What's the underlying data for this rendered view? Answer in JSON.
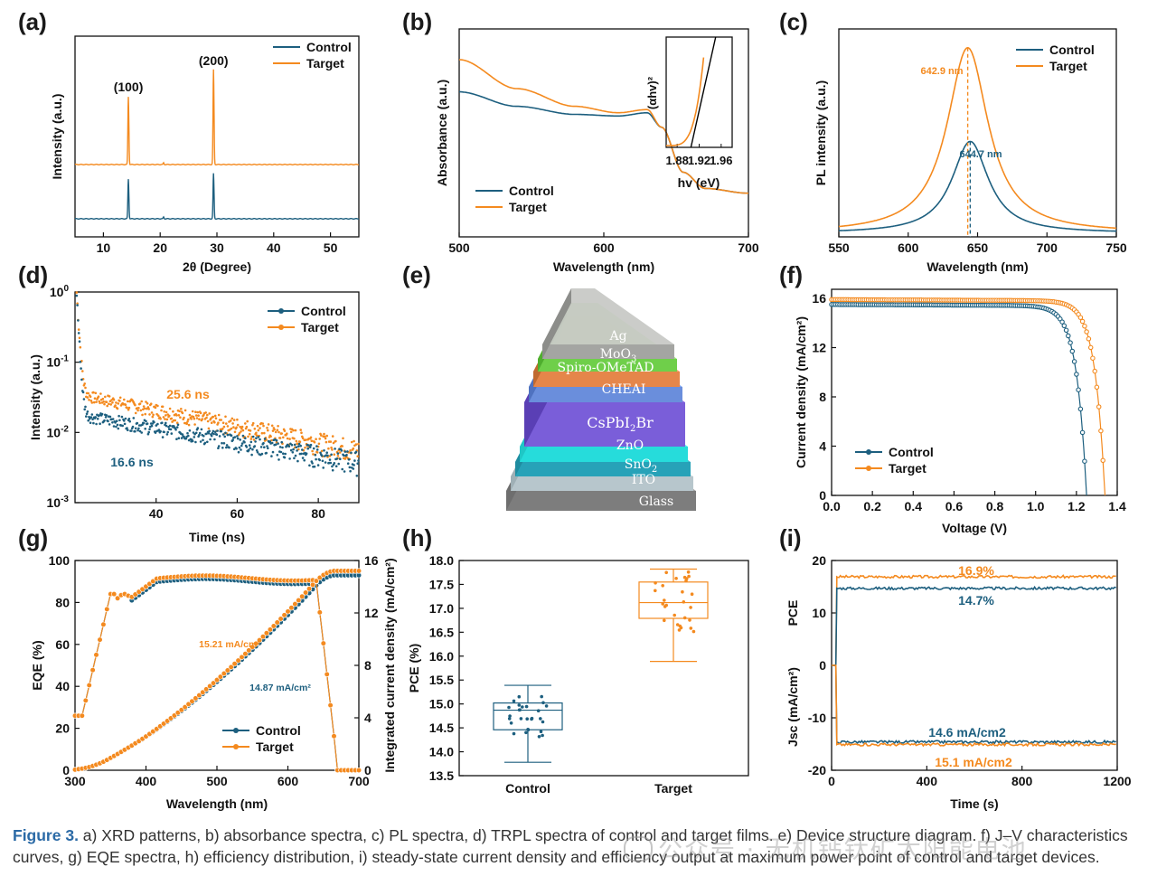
{
  "colors": {
    "control": "#1d5f7f",
    "target": "#f48a1f",
    "axis": "#111111"
  },
  "panel_labels": [
    "(a)",
    "(b)",
    "(c)",
    "(d)",
    "(e)",
    "(f)",
    "(g)",
    "(h)",
    "(i)"
  ],
  "legend": {
    "control": "Control",
    "target": "Target"
  },
  "caption": {
    "figure_label": "Figure 3.",
    "text": " a) XRD patterns, b) absorbance spectra, c) PL spectra, d) TRPL spectra of control and target films. e) Device structure diagram. f) J–V characteristics curves, g) EQE spectra, h) efficiency distribution, i) steady-state current density and efficiency output at maximum power point of control and target devices."
  },
  "watermark": {
    "text": "公众号 · 无机钙钛矿太阳能电池"
  },
  "chart_data": [
    {
      "id": "a",
      "type": "line",
      "xlabel": "2θ (Degree)",
      "ylabel": "Intensity (a.u.)",
      "xlim": [
        5,
        55
      ],
      "xticks": [
        10,
        20,
        30,
        40,
        50
      ],
      "peaks": [
        {
          "x": 14.4,
          "label": "(100)"
        },
        {
          "x": 29.4,
          "label": "(200)"
        }
      ],
      "series": [
        {
          "name": "Control",
          "baseline": "low"
        },
        {
          "name": "Target",
          "baseline": "high"
        }
      ]
    },
    {
      "id": "b",
      "type": "line",
      "xlabel": "Wavelength (nm)",
      "ylabel": "Absorbance (a.u.)",
      "xlim": [
        500,
        700
      ],
      "xticks": [
        500,
        600,
        700
      ],
      "series": [
        {
          "name": "Control",
          "x": [
            500,
            540,
            580,
            610,
            630,
            640,
            655,
            670,
            700
          ],
          "y": [
            0.8,
            0.71,
            0.66,
            0.65,
            0.67,
            0.58,
            0.3,
            0.2,
            0.17
          ]
        },
        {
          "name": "Target",
          "x": [
            500,
            540,
            580,
            610,
            630,
            640,
            655,
            670,
            700
          ],
          "y": [
            1.0,
            0.82,
            0.71,
            0.67,
            0.69,
            0.58,
            0.3,
            0.2,
            0.17
          ]
        }
      ],
      "inset": {
        "xlabel": "hv (eV)",
        "ylabel": "(αhv)²",
        "xticks": [
          "1.88",
          "1.92",
          "1.96"
        ]
      }
    },
    {
      "id": "c",
      "type": "line",
      "xlabel": "Wavelength (nm)",
      "ylabel": "PL intensity (a.u.)",
      "xlim": [
        550,
        750
      ],
      "xticks": [
        550,
        600,
        650,
        700,
        750
      ],
      "series": [
        {
          "name": "Control",
          "peak_nm": 644.7,
          "rel_height": 0.47
        },
        {
          "name": "Target",
          "peak_nm": 642.9,
          "rel_height": 0.95
        }
      ],
      "annotations": [
        "642.9 nm",
        "644.7 nm"
      ]
    },
    {
      "id": "d",
      "type": "scatter",
      "xlabel": "Time (ns)",
      "ylabel": "Intensity (a.u.)",
      "yscale": "log",
      "xlim": [
        20,
        90
      ],
      "xticks": [
        40,
        60,
        80
      ],
      "ylim": [
        0.001,
        1
      ],
      "yticks": [
        {
          "v": 1,
          "mant": "10",
          "exp": "0"
        },
        {
          "v": 0.1,
          "mant": "10",
          "exp": "-1"
        },
        {
          "v": 0.01,
          "mant": "10",
          "exp": "-2"
        },
        {
          "v": 0.001,
          "mant": "10",
          "exp": "-3"
        }
      ],
      "series": [
        {
          "name": "Control",
          "lifetime": "16.6 ns"
        },
        {
          "name": "Target",
          "lifetime": "25.6 ns"
        }
      ]
    },
    {
      "id": "f",
      "type": "scatter",
      "xlabel": "Voltage (V)",
      "ylabel": "Current density (mA/cm²)",
      "xlim": [
        0,
        1.4
      ],
      "xticks": [
        "0.0",
        "0.2",
        "0.4",
        "0.6",
        "0.8",
        "1.0",
        "1.2",
        "1.4"
      ],
      "ylim": [
        0,
        16
      ],
      "yticks": [
        "0",
        "4",
        "8",
        "12",
        "16"
      ],
      "series": [
        {
          "name": "Control",
          "jsc": 15.5,
          "voc": 1.25
        },
        {
          "name": "Target",
          "jsc": 15.9,
          "voc": 1.34
        }
      ]
    },
    {
      "id": "g",
      "type": "line",
      "xlabel": "Wavelength (nm)",
      "ylabel": "EQE (%)",
      "y2label": "Integrated current density (mA/cm²)",
      "xlim": [
        300,
        700
      ],
      "xticks": [
        300,
        400,
        500,
        600,
        700
      ],
      "ylim": [
        0,
        100
      ],
      "yticks": [
        0,
        20,
        40,
        60,
        80,
        100
      ],
      "y2lim": [
        0,
        16
      ],
      "y2ticks": [
        0,
        4,
        8,
        12,
        16
      ],
      "annotations": [
        "15.21 mA/cm²",
        "14.87 mA/cm²"
      ],
      "series": [
        {
          "name": "Control",
          "integrated": 14.87
        },
        {
          "name": "Target",
          "integrated": 15.21
        }
      ]
    },
    {
      "id": "h",
      "type": "box",
      "ylabel": "PCE (%)",
      "categories": [
        "Control",
        "Target"
      ],
      "ylim": [
        13.5,
        18.0
      ],
      "yticks": [
        "13.5",
        "14.0",
        "14.5",
        "15.0",
        "15.5",
        "16.0",
        "16.5",
        "17.0",
        "17.5",
        "18.0"
      ],
      "boxes": [
        {
          "name": "Control",
          "min": 13.78,
          "q1": 14.46,
          "median": 14.87,
          "q3": 15.02,
          "max": 15.39
        },
        {
          "name": "Target",
          "min": 15.89,
          "q1": 16.79,
          "median": 17.12,
          "q3": 17.55,
          "max": 17.82
        }
      ]
    },
    {
      "id": "i",
      "type": "line",
      "xlabel": "Time (s)",
      "ylabel_top": "PCE",
      "ylabel_bottom": "Jsc (mA/cm²)",
      "xlim": [
        0,
        1200
      ],
      "xticks": [
        0,
        400,
        800,
        1200
      ],
      "ylim": [
        -20,
        20
      ],
      "yticks": [
        -20,
        -10,
        0,
        10,
        20
      ],
      "series": [
        {
          "name": "Target PCE",
          "value": 16.9,
          "label": "16.9%"
        },
        {
          "name": "Control PCE",
          "value": 14.7,
          "label": "14.7%"
        },
        {
          "name": "Control Jsc",
          "value": -14.6,
          "label": "14.6 mA/cm2"
        },
        {
          "name": "Target Jsc",
          "value": -15.1,
          "label": "15.1 mA/cm2"
        }
      ]
    }
  ],
  "device_layers": [
    "Ag",
    "MoO3",
    "Spiro-OMeTAD",
    "CHEAI",
    "CsPbI2Br",
    "ZnO",
    "SnO2",
    "ITO",
    "Glass"
  ]
}
